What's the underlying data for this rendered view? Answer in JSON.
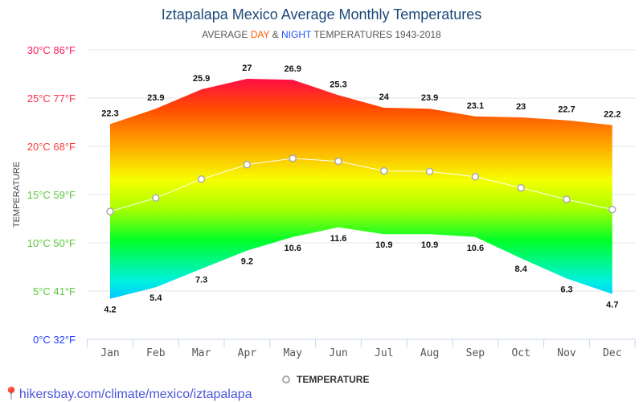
{
  "title": "Iztapalapa Mexico Average Monthly Temperatures",
  "subtitle": {
    "pre": "AVERAGE ",
    "day": "DAY",
    "amp": " & ",
    "night": "NIGHT",
    "post": " TEMPERATURES 1943-2018"
  },
  "footer": "hikersbay.com/climate/mexico/iztapalapa",
  "chart_data": {
    "type": "area",
    "title": "Iztapalapa Mexico Average Monthly Temperatures",
    "ylabel": "TEMPERATURE",
    "ylim": [
      0,
      30
    ],
    "grid": true,
    "legend": "bottom",
    "yticks": [
      {
        "value": 0,
        "label": "0°C 32°F",
        "color": "#1f3fff"
      },
      {
        "value": 5,
        "label": "5°C 41°F",
        "color": "#5ac83c"
      },
      {
        "value": 10,
        "label": "10°C 50°F",
        "color": "#5ac83c"
      },
      {
        "value": 15,
        "label": "15°C 59°F",
        "color": "#5ac83c"
      },
      {
        "value": 20,
        "label": "20°C 68°F",
        "color": "#ff3c3c"
      },
      {
        "value": 25,
        "label": "25°C 77°F",
        "color": "#ff2a50"
      },
      {
        "value": 30,
        "label": "30°C 86°F",
        "color": "#ff1e5a"
      }
    ],
    "categories": [
      "Jan",
      "Feb",
      "Mar",
      "Apr",
      "May",
      "Jun",
      "Jul",
      "Aug",
      "Sep",
      "Oct",
      "Nov",
      "Dec"
    ],
    "series": [
      {
        "name": "DAY",
        "values": [
          22.3,
          23.9,
          25.9,
          27,
          26.9,
          25.3,
          24,
          23.9,
          23.1,
          23,
          22.7,
          22.2
        ]
      },
      {
        "name": "NIGHT",
        "values": [
          4.2,
          5.4,
          7.3,
          9.2,
          10.6,
          11.6,
          10.9,
          10.9,
          10.6,
          8.4,
          6.3,
          4.7
        ]
      },
      {
        "name": "TEMPERATURE",
        "values": [
          13.25,
          14.65,
          16.6,
          18.1,
          18.75,
          18.45,
          17.45,
          17.4,
          16.85,
          15.7,
          14.5,
          13.45
        ]
      }
    ]
  }
}
